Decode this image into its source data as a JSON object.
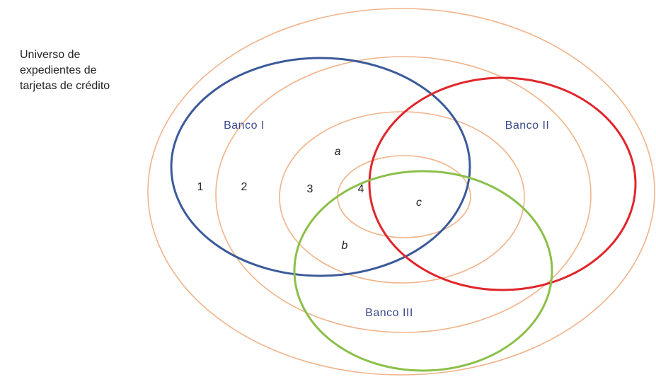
{
  "universe_label": [
    "Universo de",
    "expedientes de",
    "tarjetas de crédito"
  ],
  "sets": [
    "Banco I",
    "Banco II",
    "Banco III"
  ],
  "strata": [
    "1",
    "2",
    "3",
    "4"
  ],
  "regions": [
    "a",
    "b",
    "c"
  ]
}
